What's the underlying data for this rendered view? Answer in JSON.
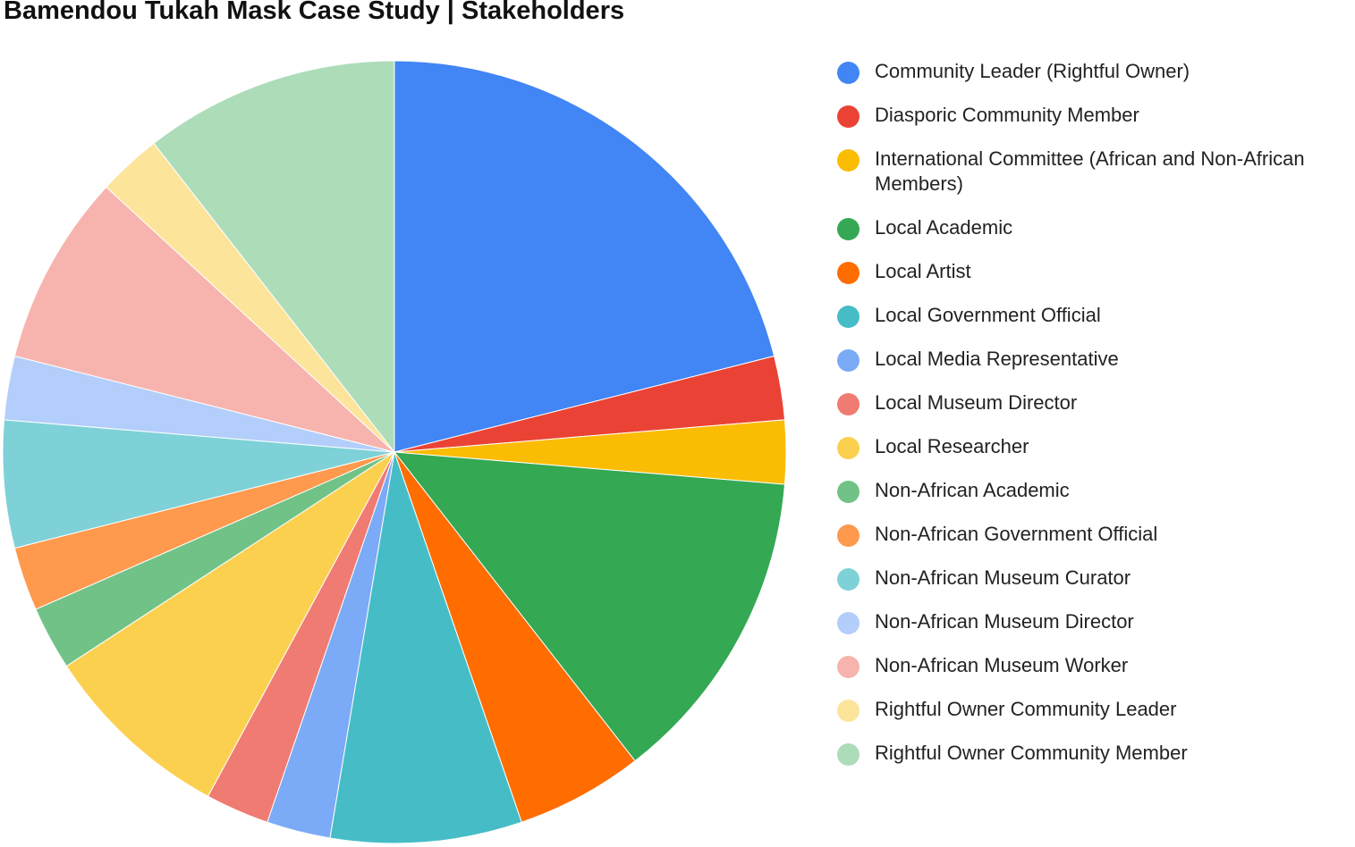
{
  "chart_data": {
    "type": "pie",
    "title": "Bamendou Tukah Mask Case Study | Stakeholders",
    "legend_position": "right",
    "start_angle_deg": 0,
    "direction": "clockwise",
    "slices": [
      {
        "label": "Community Leader (Rightful Owner)",
        "value": 8,
        "color": "#4285f4"
      },
      {
        "label": "Diasporic Community Member",
        "value": 1,
        "color": "#ea4335"
      },
      {
        "label": "International Committee (African and Non-African Members)",
        "value": 1,
        "color": "#fbbc04"
      },
      {
        "label": "Local Academic",
        "value": 5,
        "color": "#34a853"
      },
      {
        "label": "Local Artist",
        "value": 2,
        "color": "#ff6d01"
      },
      {
        "label": "Local Government Official",
        "value": 3,
        "color": "#46bdc6"
      },
      {
        "label": "Local Media Representative",
        "value": 1,
        "color": "#7baaf7"
      },
      {
        "label": "Local Museum Director",
        "value": 1,
        "color": "#f07b72"
      },
      {
        "label": "Local Researcher",
        "value": 3,
        "color": "#fcd04f"
      },
      {
        "label": "Non-African Academic",
        "value": 1,
        "color": "#71c287"
      },
      {
        "label": "Non-African Government Official",
        "value": 1,
        "color": "#ff994d"
      },
      {
        "label": "Non-African Museum Curator",
        "value": 2,
        "color": "#7ed1d7"
      },
      {
        "label": "Non-African Museum Director",
        "value": 1,
        "color": "#b3cefb"
      },
      {
        "label": "Non-African Museum Worker",
        "value": 3,
        "color": "#f7b4ae"
      },
      {
        "label": "Rightful Owner Community Leader",
        "value": 1,
        "color": "#fde49b"
      },
      {
        "label": "Rightful Owner Community Member",
        "value": 4,
        "color": "#addcb9"
      }
    ]
  }
}
